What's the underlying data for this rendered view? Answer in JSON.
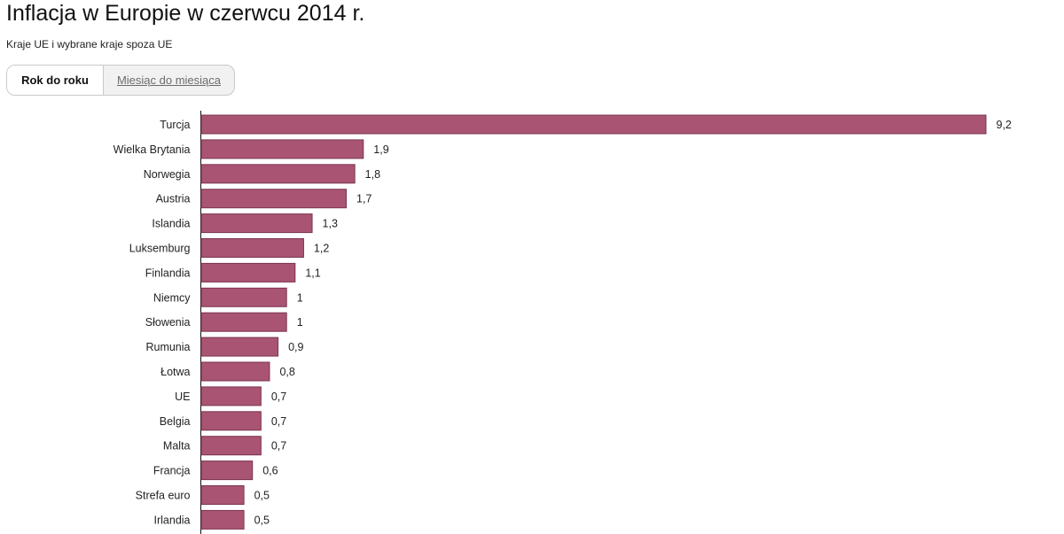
{
  "header": {
    "title": "Inflacja w Europie w czerwcu 2014 r.",
    "subtitle": "Kraje UE i wybrane kraje spoza UE"
  },
  "tabs": [
    {
      "label": "Rok do roku",
      "active": true
    },
    {
      "label": "Miesiąc do miesiąca",
      "active": false
    }
  ],
  "colors": {
    "bar_fill": "#a95473",
    "bar_stroke": "#7a3551"
  },
  "chart_data": {
    "type": "bar",
    "orientation": "horizontal",
    "categories": [
      "Turcja",
      "Wielka Brytania",
      "Norwegia",
      "Austria",
      "Islandia",
      "Luksemburg",
      "Finlandia",
      "Niemcy",
      "Słowenia",
      "Rumunia",
      "Łotwa",
      "UE",
      "Belgia",
      "Malta",
      "Francja",
      "Strefa euro",
      "Irlandia"
    ],
    "values": [
      9.2,
      1.9,
      1.8,
      1.7,
      1.3,
      1.2,
      1.1,
      1,
      1,
      0.9,
      0.8,
      0.7,
      0.7,
      0.7,
      0.6,
      0.5,
      0.5
    ],
    "value_labels": [
      "9,2",
      "1,9",
      "1,8",
      "1,7",
      "1,3",
      "1,2",
      "1,1",
      "1",
      "1",
      "0,9",
      "0,8",
      "0,7",
      "0,7",
      "0,7",
      "0,6",
      "0,5",
      "0,5"
    ],
    "title": "Inflacja w Europie w czerwcu 2014 r.",
    "xlabel": "",
    "ylabel": "",
    "xlim": [
      0,
      9.2
    ],
    "grid": false
  }
}
